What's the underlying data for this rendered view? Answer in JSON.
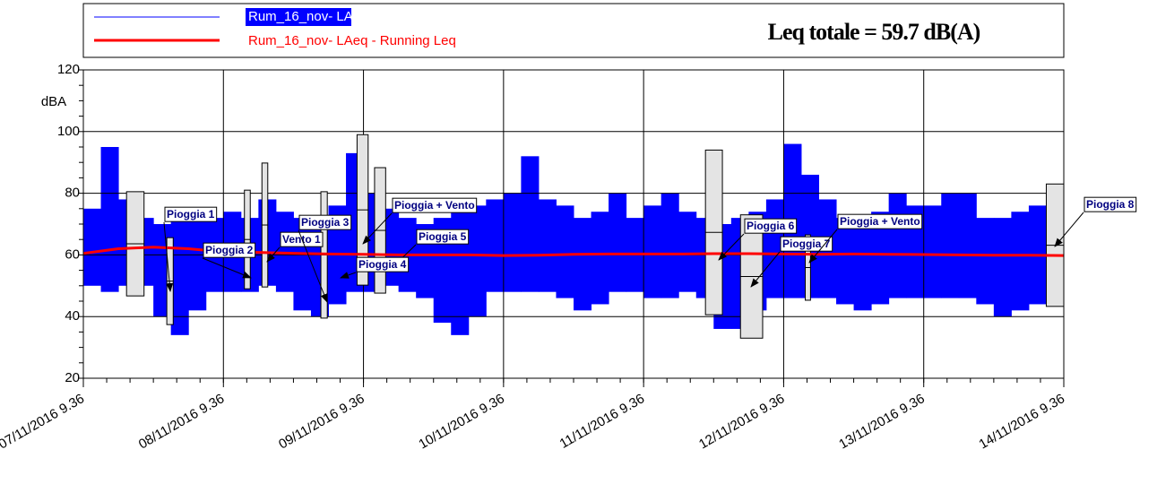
{
  "chart_data": {
    "type": "line",
    "legend": [
      "Rum_16_nov- LAeq",
      "Rum_16_nov- LAeq - Running Leq"
    ],
    "annotation_total": "Leq totale = 59.7 dB(A)",
    "ylabel": "dBA",
    "xlim": [
      0,
      168
    ],
    "ylim": [
      20,
      120
    ],
    "yticks": [
      20,
      40,
      60,
      80,
      100,
      120
    ],
    "xticks": [
      {
        "value": 0,
        "label": "07/11/2016 9.36"
      },
      {
        "value": 24,
        "label": "08/11/2016 9.36"
      },
      {
        "value": 48,
        "label": "09/11/2016 9.36"
      },
      {
        "value": 72,
        "label": "10/11/2016 9.36"
      },
      {
        "value": 96,
        "label": "11/11/2016 9.36"
      },
      {
        "value": 120,
        "label": "12/11/2016 9.36"
      },
      {
        "value": 144,
        "label": "13/11/2016 9.36"
      },
      {
        "value": 168,
        "label": "14/11/2016 9.36"
      }
    ],
    "grid": true,
    "series": [
      {
        "name": "Rum_16_nov- LAeq",
        "color": "#0000ff",
        "x": [
          0,
          3,
          6,
          9,
          12,
          15,
          18,
          21,
          24,
          27,
          30,
          33,
          36,
          39,
          42,
          45,
          48,
          51,
          54,
          57,
          60,
          63,
          66,
          69,
          72,
          75,
          78,
          81,
          84,
          87,
          90,
          93,
          96,
          99,
          102,
          105,
          108,
          111,
          114,
          117,
          120,
          123,
          126,
          129,
          132,
          135,
          138,
          141,
          144,
          147,
          150,
          153,
          156,
          159,
          162,
          165
        ],
        "values": [
          75,
          95,
          78,
          72,
          70,
          72,
          74,
          72,
          74,
          72,
          78,
          74,
          72,
          72,
          76,
          93,
          80,
          75,
          72,
          70,
          72,
          74,
          76,
          78,
          80,
          92,
          78,
          76,
          72,
          74,
          80,
          72,
          76,
          80,
          74,
          72,
          70,
          72,
          74,
          78,
          96,
          86,
          78,
          72,
          72,
          74,
          80,
          76,
          76,
          80,
          80,
          72,
          72,
          74,
          76,
          72
        ],
        "low": [
          50,
          48,
          50,
          50,
          40,
          34,
          42,
          48,
          48,
          48,
          50,
          48,
          42,
          40,
          44,
          48,
          48,
          50,
          48,
          46,
          38,
          34,
          40,
          48,
          48,
          48,
          48,
          46,
          42,
          44,
          48,
          48,
          46,
          46,
          48,
          46,
          36,
          36,
          42,
          46,
          46,
          46,
          46,
          44,
          42,
          44,
          46,
          46,
          46,
          46,
          46,
          44,
          40,
          42,
          44,
          48
        ]
      },
      {
        "name": "Rum_16_nov- LAeq - Running Leq",
        "color": "#ff0000",
        "x": [
          0,
          6,
          12,
          18,
          24,
          30,
          36,
          42,
          48,
          54,
          60,
          66,
          72,
          78,
          84,
          90,
          96,
          102,
          108,
          114,
          120,
          126,
          132,
          138,
          144,
          150,
          156,
          162,
          168
        ],
        "values": [
          60.5,
          62,
          62.5,
          62,
          61,
          60.8,
          60.5,
          60.3,
          60.2,
          60,
          60,
          60,
          59.8,
          59.9,
          60.2,
          60.3,
          60.3,
          60.3,
          60.4,
          60.4,
          60.3,
          60.2,
          60.3,
          60.2,
          60.1,
          60,
          59.9,
          59.9,
          59.8
        ]
      }
    ],
    "ranges": [
      {
        "x": [
          7.4,
          10.4
        ],
        "y": [
          46.7,
          80.5
        ]
      },
      {
        "x": [
          14.3,
          15.4
        ],
        "y": [
          37.4,
          65.6
        ]
      },
      {
        "x": [
          27.6,
          28.6
        ],
        "y": [
          49,
          81
        ]
      },
      {
        "x": [
          30.6,
          31.6
        ],
        "y": [
          49.6,
          89.8
        ]
      },
      {
        "x": [
          40.7,
          41.8
        ],
        "y": [
          39.5,
          80.5
        ]
      },
      {
        "x": [
          46.9,
          48.8
        ],
        "y": [
          50.2,
          99
        ]
      },
      {
        "x": [
          49.9,
          51.8
        ],
        "y": [
          47.6,
          88.3
        ]
      },
      {
        "x": [
          106.6,
          109.5
        ],
        "y": [
          40.6,
          94
        ]
      },
      {
        "x": [
          112.6,
          116.4
        ],
        "y": [
          33,
          73
        ]
      },
      {
        "x": [
          123.7,
          124.6
        ],
        "y": [
          45.3,
          66.5
        ]
      },
      {
        "x": [
          165,
          168
        ],
        "y": [
          43.3,
          83
        ]
      }
    ],
    "annotations": [
      "Pioggia 1",
      "Pioggia 2",
      "Vento 1",
      "Pioggia 3",
      "Pioggia + Vento",
      "Pioggia 5",
      "Pioggia 4",
      "Pioggia 6",
      "Pioggia 7",
      "Pioggia + Vento",
      "Pioggia 8"
    ]
  }
}
